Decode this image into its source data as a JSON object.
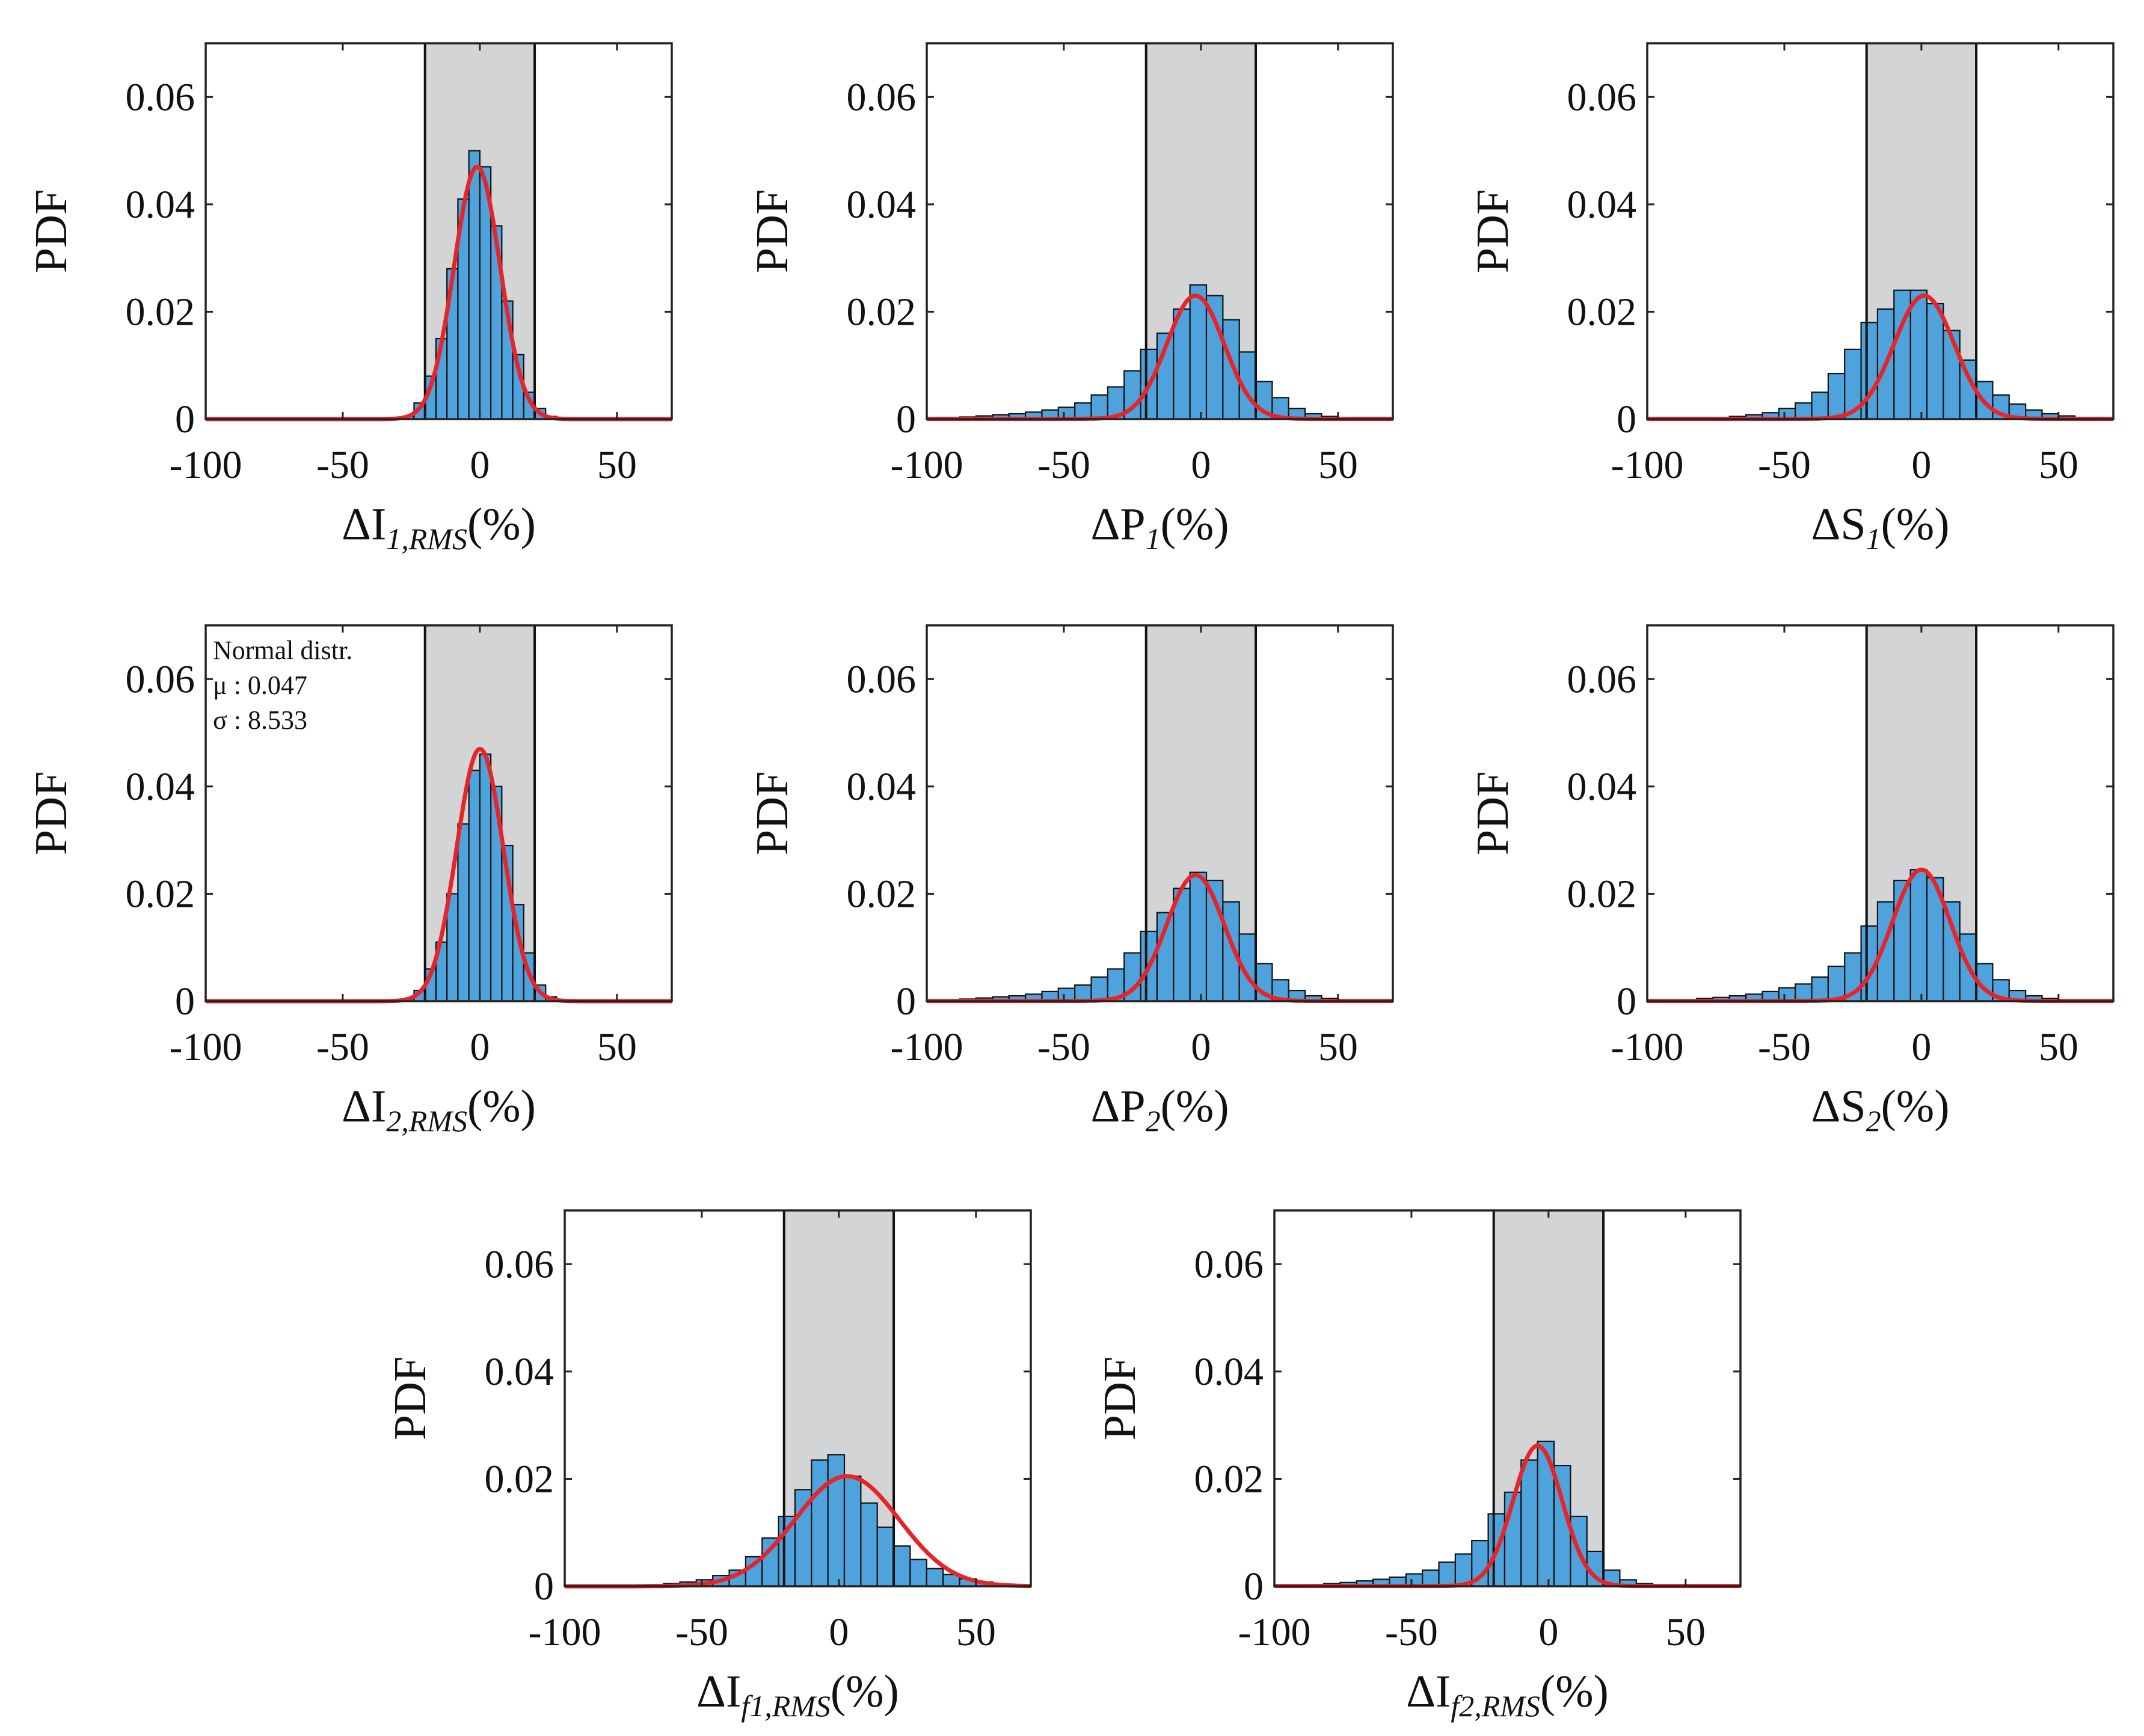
{
  "colors": {
    "bar_fill": "#4fa3dc",
    "bar_edge": "#111111",
    "curve": "#e5252a",
    "band": "#d3d4d6",
    "axis": "#222222"
  },
  "chart_data": [
    {
      "type": "bar",
      "id": "I1",
      "ylabel": "PDF",
      "xlabel": {
        "main": "ΔI",
        "sub": "1,RMS",
        "unit": "(%)"
      },
      "xlim": [
        -100,
        70
      ],
      "ylim": [
        0,
        0.07
      ],
      "xticks": [
        "-100",
        "-50",
        "0",
        "50"
      ],
      "yticks": [
        "0",
        "0.02",
        "0.04",
        "0.06"
      ],
      "band": [
        -20,
        20
      ],
      "bin_edges": [
        -100,
        70
      ],
      "bin_width": 4,
      "values": [
        0,
        0,
        0,
        0,
        0,
        0,
        0,
        0,
        0,
        0,
        0,
        0,
        0,
        0,
        0,
        0,
        0,
        0,
        0.0005,
        0.003,
        0.008,
        0.015,
        0.028,
        0.041,
        0.05,
        0.047,
        0.036,
        0.022,
        0.012,
        0.005,
        0.002,
        0.0005,
        0,
        0,
        0,
        0,
        0,
        0,
        0,
        0,
        0,
        0
      ],
      "curve": {
        "mu": -1,
        "sigma": 8.4,
        "peak": 0.047,
        "tail": 0
      }
    },
    {
      "type": "bar",
      "id": "P1",
      "ylabel": "PDF",
      "xlabel": {
        "main": "ΔP",
        "sub": "1",
        "unit": "(%)"
      },
      "xlim": [
        -100,
        70
      ],
      "ylim": [
        0,
        0.07
      ],
      "xticks": [
        "-100",
        "-50",
        "0",
        "50"
      ],
      "yticks": [
        "0",
        "0.02",
        "0.04",
        "0.06"
      ],
      "band": [
        -20,
        20
      ],
      "bin_edges": [
        -100,
        70
      ],
      "bin_width": 6,
      "values": [
        0,
        0.0002,
        0.0004,
        0.0006,
        0.0008,
        0.001,
        0.0013,
        0.0017,
        0.0022,
        0.003,
        0.0045,
        0.006,
        0.009,
        0.013,
        0.016,
        0.0205,
        0.025,
        0.023,
        0.0185,
        0.0125,
        0.007,
        0.004,
        0.002,
        0.001,
        0.0005,
        0.0002,
        0.0001,
        0,
        0
      ],
      "curve": {
        "mu": -2,
        "sigma": 10.5,
        "peak": 0.023,
        "tail": 5e-05
      }
    },
    {
      "type": "bar",
      "id": "S1",
      "ylabel": "PDF",
      "xlabel": {
        "main": "ΔS",
        "sub": "1",
        "unit": "(%)"
      },
      "xlim": [
        -100,
        70
      ],
      "ylim": [
        0,
        0.07
      ],
      "xticks": [
        "-100",
        "-50",
        "0",
        "50"
      ],
      "yticks": [
        "0",
        "0.02",
        "0.04",
        "0.06"
      ],
      "band": [
        -20,
        20
      ],
      "bin_edges": [
        -100,
        70
      ],
      "bin_width": 6,
      "values": [
        0,
        0,
        0.0001,
        0.0002,
        0.0003,
        0.0005,
        0.0008,
        0.0012,
        0.002,
        0.003,
        0.005,
        0.0085,
        0.013,
        0.018,
        0.0205,
        0.024,
        0.024,
        0.0215,
        0.0165,
        0.011,
        0.007,
        0.0045,
        0.0028,
        0.0017,
        0.001,
        0.0006,
        0.0003,
        0.0001,
        0
      ],
      "curve": {
        "mu": 1,
        "sigma": 11,
        "peak": 0.023,
        "tail": 5e-05
      }
    },
    {
      "type": "bar",
      "id": "I2",
      "ylabel": "PDF",
      "xlabel": {
        "main": "ΔI",
        "sub": "2,RMS",
        "unit": "(%)"
      },
      "xlim": [
        -100,
        70
      ],
      "ylim": [
        0,
        0.07
      ],
      "xticks": [
        "-100",
        "-50",
        "0",
        "50"
      ],
      "yticks": [
        "0",
        "0.02",
        "0.04",
        "0.06"
      ],
      "band": [
        -20,
        20
      ],
      "bin_edges": [
        -100,
        70
      ],
      "bin_width": 4,
      "values": [
        0,
        0,
        0,
        0,
        0,
        0,
        0,
        0,
        0,
        0,
        0,
        0,
        0,
        0,
        0,
        0,
        0,
        0,
        0.0004,
        0.002,
        0.006,
        0.011,
        0.02,
        0.033,
        0.043,
        0.046,
        0.04,
        0.029,
        0.018,
        0.009,
        0.003,
        0.0008,
        0,
        0,
        0,
        0,
        0,
        0,
        0,
        0,
        0,
        0
      ],
      "curve": {
        "mu": 0.047,
        "sigma": 8.533,
        "peak": 0.047,
        "tail": 0
      },
      "annotation": {
        "lines": [
          "Normal distr.",
          "μ : 0.047",
          "σ : 8.533"
        ]
      }
    },
    {
      "type": "bar",
      "id": "P2",
      "ylabel": "PDF",
      "xlabel": {
        "main": "ΔP",
        "sub": "2",
        "unit": "(%)"
      },
      "xlim": [
        -100,
        70
      ],
      "ylim": [
        0,
        0.07
      ],
      "xticks": [
        "-100",
        "-50",
        "0",
        "50"
      ],
      "yticks": [
        "0",
        "0.02",
        "0.04",
        "0.06"
      ],
      "band": [
        -20,
        20
      ],
      "bin_edges": [
        -100,
        70
      ],
      "bin_width": 6,
      "values": [
        0,
        0.0002,
        0.0004,
        0.0006,
        0.0008,
        0.001,
        0.0013,
        0.0018,
        0.0024,
        0.003,
        0.0045,
        0.006,
        0.009,
        0.013,
        0.0165,
        0.021,
        0.024,
        0.0225,
        0.0185,
        0.0125,
        0.007,
        0.004,
        0.002,
        0.001,
        0.0005,
        0.0002,
        0.0001,
        0,
        0
      ],
      "curve": {
        "mu": -2,
        "sigma": 10.5,
        "peak": 0.0235,
        "tail": 5e-05
      }
    },
    {
      "type": "bar",
      "id": "S2",
      "ylabel": "PDF",
      "xlabel": {
        "main": "ΔS",
        "sub": "2",
        "unit": "(%)"
      },
      "xlim": [
        -100,
        70
      ],
      "ylim": [
        0,
        0.07
      ],
      "xticks": [
        "-100",
        "-50",
        "0",
        "50"
      ],
      "yticks": [
        "0",
        "0.02",
        "0.04",
        "0.06"
      ],
      "band": [
        -20,
        20
      ],
      "bin_edges": [
        -100,
        70
      ],
      "bin_width": 6,
      "values": [
        0,
        0.0002,
        0.0003,
        0.0005,
        0.0007,
        0.001,
        0.0013,
        0.0018,
        0.0025,
        0.0032,
        0.0045,
        0.0065,
        0.009,
        0.014,
        0.0185,
        0.0225,
        0.0245,
        0.023,
        0.0185,
        0.0125,
        0.007,
        0.004,
        0.002,
        0.001,
        0.0005,
        0.0002,
        0.0001,
        0,
        0
      ],
      "curve": {
        "mu": 0,
        "sigma": 10.5,
        "peak": 0.0245,
        "tail": 5e-05
      }
    },
    {
      "type": "bar",
      "id": "If1",
      "ylabel": "PDF",
      "xlabel": {
        "main": "ΔI",
        "sub": "f1,RMS",
        "unit": "(%)"
      },
      "xlim": [
        -100,
        70
      ],
      "ylim": [
        0,
        0.07
      ],
      "xticks": [
        "-100",
        "-50",
        "0",
        "50"
      ],
      "yticks": [
        "0",
        "0.02",
        "0.04",
        "0.06"
      ],
      "band": [
        -20,
        20
      ],
      "bin_edges": [
        -100,
        70
      ],
      "bin_width": 6,
      "values": [
        0,
        0,
        0,
        0.0001,
        0.0002,
        0.0003,
        0.0005,
        0.0008,
        0.0012,
        0.002,
        0.003,
        0.0055,
        0.009,
        0.013,
        0.018,
        0.0235,
        0.0245,
        0.0205,
        0.0155,
        0.011,
        0.0075,
        0.005,
        0.0033,
        0.0022,
        0.0014,
        0.0008,
        0.0004,
        0.0002,
        0
      ],
      "curve": {
        "mu": 3,
        "sigma": 19,
        "peak": 0.0205,
        "tail": 0
      }
    },
    {
      "type": "bar",
      "id": "If2",
      "ylabel": "PDF",
      "xlabel": {
        "main": "ΔI",
        "sub": "f2,RMS",
        "unit": "(%)"
      },
      "xlim": [
        -100,
        70
      ],
      "ylim": [
        0,
        0.07
      ],
      "xticks": [
        "-100",
        "-50",
        "0",
        "50"
      ],
      "yticks": [
        "0",
        "0.02",
        "0.04",
        "0.06"
      ],
      "band": [
        -20,
        20
      ],
      "bin_edges": [
        -100,
        70
      ],
      "bin_width": 6,
      "values": [
        0,
        0.0002,
        0.0003,
        0.0005,
        0.0007,
        0.001,
        0.0013,
        0.0017,
        0.0023,
        0.003,
        0.0045,
        0.006,
        0.0085,
        0.0135,
        0.0175,
        0.0235,
        0.027,
        0.0225,
        0.013,
        0.0065,
        0.003,
        0.0012,
        0.0005,
        0.0002,
        0,
        0,
        0,
        0,
        0
      ],
      "curve": {
        "mu": -4,
        "sigma": 9,
        "peak": 0.0262,
        "tail": 4e-05
      }
    }
  ]
}
